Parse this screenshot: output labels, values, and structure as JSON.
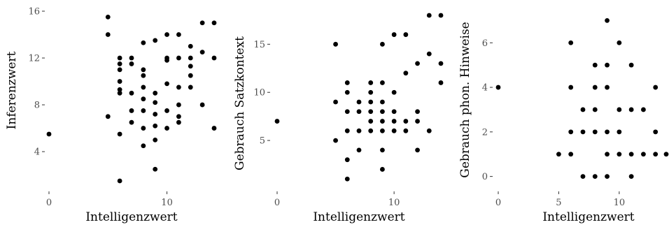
{
  "chart_data": [
    {
      "type": "scatter",
      "title": "",
      "xlabel": "Intelligenzwert",
      "ylabel": "Inferenzwert",
      "xlim": [
        0,
        14
      ],
      "ylim": [
        1.5,
        16
      ],
      "xticks": [
        0,
        10
      ],
      "xtick_labels": [
        "0",
        "10"
      ],
      "yticks": [
        4,
        8,
        12,
        16
      ],
      "ytick_labels": [
        "4",
        "8",
        "12",
        "16"
      ],
      "grid": false,
      "points": [
        [
          0,
          5.5
        ],
        [
          5,
          15.5
        ],
        [
          5,
          14
        ],
        [
          5,
          7
        ],
        [
          6,
          12
        ],
        [
          6,
          11.5
        ],
        [
          6,
          11
        ],
        [
          6,
          10
        ],
        [
          6,
          9.3
        ],
        [
          6,
          9
        ],
        [
          6,
          5.5
        ],
        [
          6,
          1.5
        ],
        [
          7,
          12
        ],
        [
          7,
          11.5
        ],
        [
          7,
          9
        ],
        [
          7,
          7.5
        ],
        [
          7,
          6.5
        ],
        [
          8,
          13.3
        ],
        [
          8,
          11
        ],
        [
          8,
          10.5
        ],
        [
          8,
          9.5
        ],
        [
          8,
          8.5
        ],
        [
          8,
          7.5
        ],
        [
          8,
          6
        ],
        [
          8,
          4.5
        ],
        [
          9,
          13.5
        ],
        [
          9,
          9
        ],
        [
          9,
          8.2
        ],
        [
          9,
          7.2
        ],
        [
          9,
          6.2
        ],
        [
          9,
          5
        ],
        [
          9,
          2.5
        ],
        [
          10,
          14
        ],
        [
          10,
          12
        ],
        [
          10,
          11.8
        ],
        [
          10,
          9.8
        ],
        [
          10,
          7.5
        ],
        [
          10,
          6
        ],
        [
          11,
          14
        ],
        [
          11,
          12
        ],
        [
          11,
          9.5
        ],
        [
          11,
          8
        ],
        [
          11,
          7
        ],
        [
          11,
          6.5
        ],
        [
          12,
          13
        ],
        [
          12,
          12
        ],
        [
          12,
          11.3
        ],
        [
          12,
          10.5
        ],
        [
          12,
          9.5
        ],
        [
          13,
          15
        ],
        [
          13,
          12.5
        ],
        [
          13,
          8
        ],
        [
          14,
          15
        ],
        [
          14,
          12
        ],
        [
          14,
          6
        ]
      ]
    },
    {
      "type": "scatter",
      "title": "",
      "xlabel": "Intelligenzwert",
      "ylabel": "Gebrauch Satzkontext",
      "xlim": [
        0,
        14
      ],
      "ylim": [
        0,
        18
      ],
      "xticks": [
        0,
        10
      ],
      "xtick_labels": [
        "0",
        "10"
      ],
      "yticks": [
        5,
        10,
        15
      ],
      "ytick_labels": [
        "5",
        "10",
        "15"
      ],
      "grid": false,
      "points": [
        [
          0,
          7
        ],
        [
          5,
          15
        ],
        [
          5,
          9
        ],
        [
          5,
          5
        ],
        [
          6,
          11
        ],
        [
          6,
          10
        ],
        [
          6,
          8
        ],
        [
          6,
          6
        ],
        [
          6,
          3
        ],
        [
          6,
          1
        ],
        [
          7,
          9
        ],
        [
          7,
          8
        ],
        [
          7,
          6
        ],
        [
          7,
          4
        ],
        [
          8,
          11
        ],
        [
          8,
          10
        ],
        [
          8,
          9
        ],
        [
          8,
          8
        ],
        [
          8,
          7
        ],
        [
          8,
          6
        ],
        [
          9,
          15
        ],
        [
          9,
          11
        ],
        [
          9,
          9
        ],
        [
          9,
          8
        ],
        [
          9,
          7
        ],
        [
          9,
          6
        ],
        [
          9,
          4
        ],
        [
          9,
          2
        ],
        [
          10,
          16
        ],
        [
          10,
          10
        ],
        [
          10,
          8
        ],
        [
          10,
          7
        ],
        [
          10,
          6
        ],
        [
          11,
          16
        ],
        [
          11,
          12
        ],
        [
          11,
          7
        ],
        [
          11,
          6
        ],
        [
          12,
          13
        ],
        [
          12,
          8
        ],
        [
          12,
          7
        ],
        [
          12,
          4
        ],
        [
          13,
          18
        ],
        [
          13,
          14
        ],
        [
          13,
          6
        ],
        [
          14,
          18
        ],
        [
          14,
          13
        ],
        [
          14,
          11
        ]
      ]
    },
    {
      "type": "scatter",
      "title": "",
      "xlabel": "Intelligenzwert",
      "ylabel": "Gebrauch phon. Hinweise",
      "xlim": [
        0,
        14
      ],
      "ylim": [
        -0.2,
        7.2
      ],
      "xticks": [
        0,
        5,
        10
      ],
      "xtick_labels": [
        "0",
        "5",
        "10"
      ],
      "yticks": [
        0,
        2,
        4,
        6
      ],
      "ytick_labels": [
        "0",
        "2",
        "4",
        "6"
      ],
      "grid": false,
      "points": [
        [
          0,
          4
        ],
        [
          5,
          1
        ],
        [
          6,
          6
        ],
        [
          6,
          4
        ],
        [
          6,
          2
        ],
        [
          6,
          1
        ],
        [
          7,
          3
        ],
        [
          7,
          2
        ],
        [
          7,
          0
        ],
        [
          8,
          5
        ],
        [
          8,
          4
        ],
        [
          8,
          3
        ],
        [
          8,
          2
        ],
        [
          8,
          0
        ],
        [
          9,
          7
        ],
        [
          9,
          5
        ],
        [
          9,
          4
        ],
        [
          9,
          2
        ],
        [
          9,
          1
        ],
        [
          9,
          0
        ],
        [
          10,
          6
        ],
        [
          10,
          3
        ],
        [
          10,
          2
        ],
        [
          10,
          1
        ],
        [
          11,
          5
        ],
        [
          11,
          3
        ],
        [
          11,
          1
        ],
        [
          11,
          0
        ],
        [
          12,
          3
        ],
        [
          12,
          1
        ],
        [
          13,
          4
        ],
        [
          13,
          2
        ],
        [
          13,
          1
        ],
        [
          14,
          1
        ]
      ]
    }
  ]
}
